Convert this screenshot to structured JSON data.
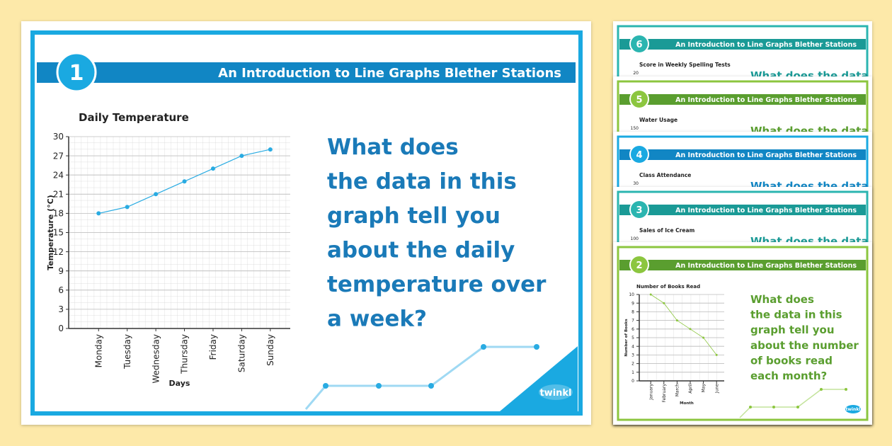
{
  "main_slide": {
    "number": 1,
    "header": "An Introduction to Line Graphs Blether Stations",
    "chart": {
      "type": "line",
      "title": "Daily Temperature",
      "y_label": "Temperature (°C)",
      "x_label": "Days",
      "categories": [
        "Monday",
        "Tuesday",
        "Wednesday",
        "Thursday",
        "Friday",
        "Saturday",
        "Sunday"
      ],
      "values": [
        18,
        19,
        21,
        23,
        25,
        27,
        28
      ],
      "color": "#29abe2",
      "ylim": [
        0,
        30
      ],
      "yticks": [
        0,
        3,
        6,
        9,
        12,
        15,
        18,
        21,
        24,
        27,
        30
      ],
      "grid": true
    },
    "question": [
      "What does",
      "the data in this",
      "graph tell you",
      "about the daily",
      "temperature over",
      "a week?"
    ],
    "logo": "twinkl"
  },
  "thumbnails": [
    {
      "number": 6,
      "header": "An Introduction to Line Graphs Blether Stations",
      "chart_title": "Score in Weekly Spelling Tests",
      "y_top_label": 20,
      "question_fragment": "What does the data",
      "color": "#2bb5b0",
      "dark": "#1a9a96"
    },
    {
      "number": 5,
      "header": "An Introduction to Line Graphs Blether Stations",
      "chart_title": "Water Usage",
      "y_top_label": 150,
      "question_fragment": "What does the data",
      "color": "#8cc63f",
      "dark": "#5a9e2f"
    },
    {
      "number": 4,
      "header": "An Introduction to Line Graphs Blether Stations",
      "chart_title": "Class Attendance",
      "y_top_label": 30,
      "question_fragment": "What does the data",
      "color": "#1aa9e1",
      "dark": "#1186c4"
    },
    {
      "number": 3,
      "header": "An Introduction to Line Graphs Blether Stations",
      "chart_title": "Sales of Ice Cream",
      "y_top_label": 100,
      "question_fragment": "What does the data",
      "color": "#2bb5b0",
      "dark": "#1a9a96"
    },
    {
      "number": 2,
      "header": "An Introduction to Line Graphs Blether Stations",
      "color": "#8cc63f",
      "dark": "#5a9e2f",
      "chart": {
        "type": "line",
        "title": "Number of Books Read",
        "y_label": "Number of Books",
        "x_label": "Month",
        "categories": [
          "January",
          "February",
          "March",
          "April",
          "May",
          "June"
        ],
        "values": [
          10,
          9,
          7,
          6,
          5,
          3
        ],
        "color": "#8cc63f",
        "ylim": [
          0,
          10
        ],
        "yticks": [
          0,
          1,
          2,
          3,
          4,
          5,
          6,
          7,
          8,
          9,
          10
        ],
        "grid": true
      },
      "question": [
        "What does",
        "the data in this",
        "graph tell you",
        "about the number",
        "of books read",
        "each month?"
      ],
      "logo": "twinkl"
    }
  ]
}
